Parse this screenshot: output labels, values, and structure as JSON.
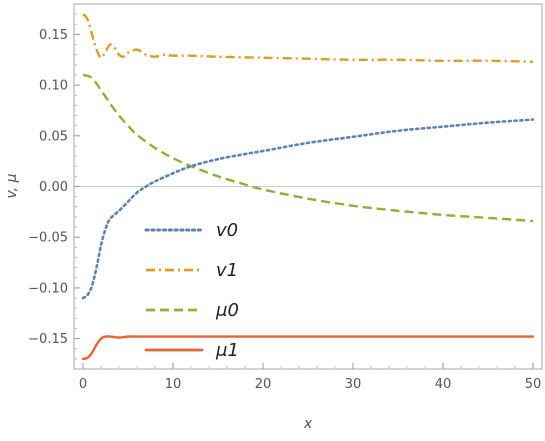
{
  "chart_data": {
    "type": "line",
    "title": "",
    "xlabel": "x",
    "ylabel": "v, μ",
    "xlim": [
      -1,
      51
    ],
    "ylim": [
      -0.18,
      0.18
    ],
    "x_ticks": [
      0,
      10,
      20,
      30,
      40,
      50
    ],
    "x_tick_labels": [
      "0",
      "10",
      "20",
      "30",
      "40",
      "50"
    ],
    "y_ticks": [
      -0.15,
      -0.1,
      -0.05,
      0.0,
      0.05,
      0.1,
      0.15
    ],
    "y_tick_labels": [
      "-0.15",
      "-0.10",
      "-0.05",
      "0.00",
      "0.05",
      "0.10",
      "0.15"
    ],
    "zero_line": true,
    "grid": false,
    "legend_position": "bottom-left",
    "series": [
      {
        "name": "v0",
        "color": "#5E81B5",
        "dash": "dotted",
        "x": [
          0,
          0.5,
          1,
          1.5,
          2,
          2.5,
          3,
          4,
          5,
          6,
          7,
          8,
          10,
          12,
          15,
          18,
          20,
          25,
          30,
          35,
          40,
          45,
          50
        ],
        "y": [
          -0.11,
          -0.107,
          -0.098,
          -0.08,
          -0.058,
          -0.042,
          -0.032,
          -0.024,
          -0.015,
          -0.006,
          0.0,
          0.005,
          0.013,
          0.02,
          0.027,
          0.032,
          0.035,
          0.043,
          0.049,
          0.055,
          0.059,
          0.063,
          0.066
        ]
      },
      {
        "name": "v1",
        "color": "#E19C24",
        "dash": "dashdot",
        "x": [
          0,
          0.5,
          1,
          1.5,
          2,
          2.5,
          3,
          3.5,
          4,
          4.5,
          5,
          6,
          7,
          8,
          9,
          10,
          12,
          15,
          20,
          25,
          30,
          35,
          40,
          45,
          50
        ],
        "y": [
          0.17,
          0.165,
          0.15,
          0.135,
          0.127,
          0.133,
          0.14,
          0.137,
          0.13,
          0.128,
          0.132,
          0.135,
          0.13,
          0.128,
          0.13,
          0.129,
          0.129,
          0.128,
          0.127,
          0.126,
          0.125,
          0.125,
          0.124,
          0.124,
          0.123
        ]
      },
      {
        "name": "μ0",
        "color": "#8FB032",
        "dash": "dashed",
        "x": [
          0,
          1,
          2,
          3,
          4,
          5,
          6,
          8,
          10,
          12,
          15,
          18,
          20,
          25,
          30,
          35,
          40,
          45,
          50
        ],
        "y": [
          0.11,
          0.107,
          0.095,
          0.082,
          0.07,
          0.06,
          0.051,
          0.038,
          0.028,
          0.02,
          0.01,
          0.002,
          -0.003,
          -0.012,
          -0.019,
          -0.024,
          -0.028,
          -0.031,
          -0.034
        ]
      },
      {
        "name": "μ1",
        "color": "#EB6235",
        "dash": "solid",
        "x": [
          0,
          0.5,
          1,
          1.5,
          2,
          2.5,
          3,
          4,
          5,
          6,
          8,
          10,
          20,
          30,
          40,
          50
        ],
        "y": [
          -0.17,
          -0.169,
          -0.164,
          -0.156,
          -0.15,
          -0.148,
          -0.148,
          -0.149,
          -0.148,
          -0.148,
          -0.148,
          -0.148,
          -0.148,
          -0.148,
          -0.148,
          -0.148
        ]
      }
    ]
  }
}
